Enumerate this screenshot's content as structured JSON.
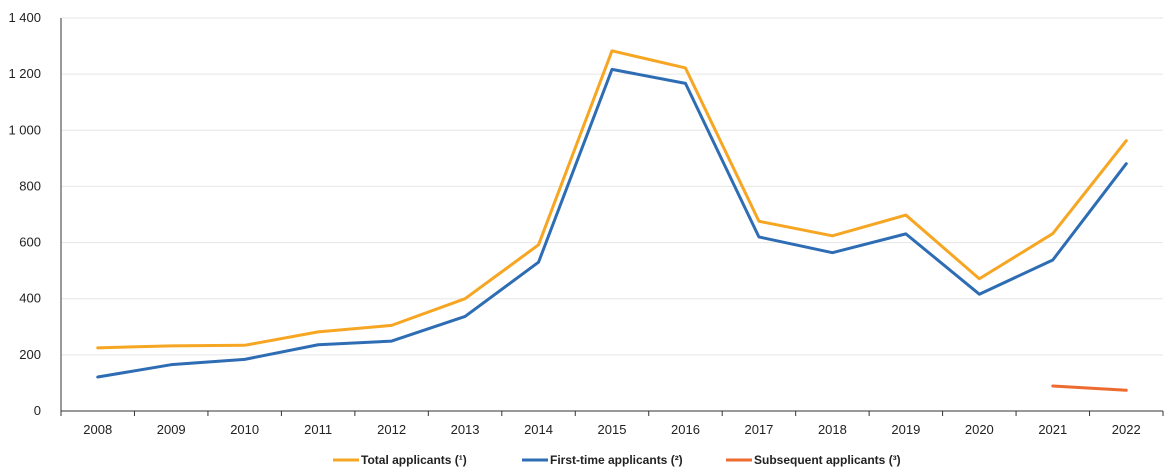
{
  "chart_data": {
    "type": "line",
    "title": "",
    "xlabel": "",
    "ylabel": "",
    "ylim": [
      0,
      1400
    ],
    "yticks": [
      0,
      200,
      400,
      600,
      800,
      1000,
      1200,
      1400
    ],
    "ytick_labels": [
      "0",
      "200",
      "400",
      "600",
      "800",
      "1 000",
      "1 200",
      "1 400"
    ],
    "categories": [
      "2008",
      "2009",
      "2010",
      "2011",
      "2012",
      "2013",
      "2014",
      "2015",
      "2016",
      "2017",
      "2018",
      "2019",
      "2020",
      "2021",
      "2022"
    ],
    "grid": "horizontal",
    "legend_position": "bottom-center",
    "series": [
      {
        "name": "Total applicants (¹)",
        "color": "#f6a623",
        "values": [
          225,
          232,
          234,
          282,
          305,
          400,
          592,
          1283,
          1222,
          676,
          624,
          698,
          471,
          632,
          963
        ]
      },
      {
        "name": "First-time applicants (²)",
        "color": "#2e6db4",
        "values": [
          121,
          165,
          184,
          236,
          249,
          337,
          530,
          1217,
          1167,
          620,
          564,
          631,
          416,
          538,
          881
        ]
      },
      {
        "name": "Subsequent applicants (³)",
        "color": "#ee6b2f",
        "values": [
          null,
          null,
          null,
          null,
          null,
          null,
          null,
          null,
          null,
          null,
          null,
          null,
          null,
          89,
          74
        ]
      }
    ]
  }
}
